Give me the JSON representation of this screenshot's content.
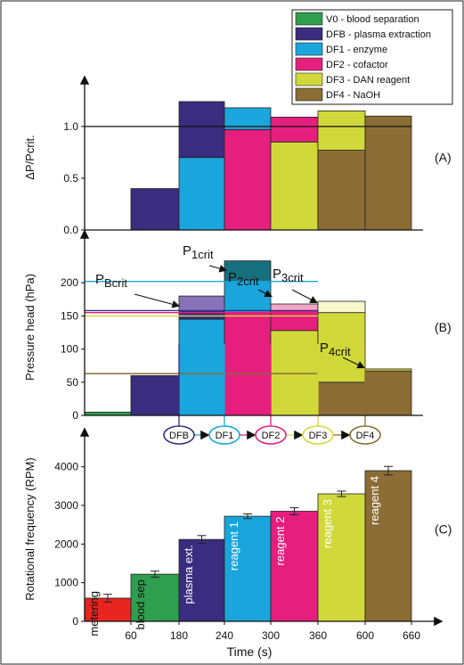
{
  "chart_data": {
    "type": "bar",
    "xlabel": "Time (s)",
    "x_ticks": [
      "60",
      "180",
      "240",
      "300",
      "360",
      "600",
      "660"
    ],
    "colors": {
      "V0": "#2e9e4f",
      "DFB": "#3a2c7e",
      "DF1": "#1aa6dc",
      "DF2": "#e61e7e",
      "DF3": "#d1d83a",
      "DF4": "#8b6d35",
      "metering": "#e8251e",
      "DF2_light": "#f3a6c9",
      "DF3_light": "#e9ec9c",
      "DF3_pale": "#f6f7cc",
      "DF1_dark": "#17707e",
      "DFB_light": "#8873b8",
      "DF1_light": "#7fd0f0"
    },
    "legend": [
      {
        "key": "V0",
        "label": "V0 - blood separation",
        "color": "#2e9e4f"
      },
      {
        "key": "DFB",
        "label": "DFB - plasma extraction",
        "color": "#3a2c7e"
      },
      {
        "key": "DF1",
        "label": "DF1 - enzyme",
        "color": "#1aa6dc"
      },
      {
        "key": "DF2",
        "label": "DF2 - cofactor",
        "color": "#e61e7e"
      },
      {
        "key": "DF3",
        "label": "DF3 - DAN reagent",
        "color": "#d1d83a"
      },
      {
        "key": "DF4",
        "label": "DF4 - NaOH",
        "color": "#8b6d35"
      }
    ],
    "panels": [
      {
        "id": "A",
        "panel_label": "(A)",
        "ylabel": "ΔP/Pcrit.",
        "ylim": [
          0,
          1.3
        ],
        "yticks": [
          "0.0",
          "0.5",
          "1.0"
        ],
        "reference_line": 1.0,
        "segments": [
          {
            "slot": 1,
            "bars": [
              {
                "color": "DFB",
                "y0": 0,
                "y1": 0.4
              }
            ]
          },
          {
            "slot": 2,
            "bars": [
              {
                "color": "DF1",
                "y0": 0,
                "y1": 0.7
              },
              {
                "color": "DFB",
                "y0": 0.7,
                "y1": 1.24
              }
            ]
          },
          {
            "slot": 3,
            "bars": [
              {
                "color": "DF2",
                "y0": 0,
                "y1": 0.97
              },
              {
                "color": "DF1",
                "y0": 0.97,
                "y1": 1.18
              }
            ]
          },
          {
            "slot": 4,
            "bars": [
              {
                "color": "DF3",
                "y0": 0,
                "y1": 0.85
              },
              {
                "color": "DF2",
                "y0": 0.85,
                "y1": 1.09
              }
            ]
          },
          {
            "slot": 5,
            "bars": [
              {
                "color": "DF4",
                "y0": 0,
                "y1": 0.77
              },
              {
                "color": "DF3",
                "y0": 0.77,
                "y1": 1.15
              }
            ]
          },
          {
            "slot": 6,
            "bars": [
              {
                "color": "DF4",
                "y0": 0,
                "y1": 1.1
              }
            ]
          }
        ]
      },
      {
        "id": "B",
        "panel_label": "(B)",
        "ylabel": "Pressure head (hPa)",
        "ylim": [
          0,
          250
        ],
        "yticks": [
          "0",
          "50",
          "100",
          "150",
          "200"
        ],
        "segments": [
          {
            "slot": 0,
            "bars": [
              {
                "color": "V0",
                "y0": 0,
                "y1": 5
              }
            ]
          },
          {
            "slot": 1,
            "bars": [
              {
                "color": "DFB",
                "y0": 0,
                "y1": 60
              }
            ]
          },
          {
            "slot": 2,
            "bars": [
              {
                "color": "DF1",
                "y0": 0,
                "y1": 145
              },
              {
                "color": "DFB",
                "y0": 145,
                "y1": 158
              },
              {
                "color": "DFB_light",
                "y0": 158,
                "y1": 180
              }
            ]
          },
          {
            "slot": 3,
            "bars": [
              {
                "color": "DF2",
                "y0": 0,
                "y1": 155
              },
              {
                "color": "DF1",
                "y0": 155,
                "y1": 202
              },
              {
                "color": "DF1_dark",
                "y0": 202,
                "y1": 233
              }
            ]
          },
          {
            "slot": 4,
            "bars": [
              {
                "color": "DF3",
                "y0": 0,
                "y1": 128
              },
              {
                "color": "DF2",
                "y0": 128,
                "y1": 158
              },
              {
                "color": "DF2_light",
                "y0": 158,
                "y1": 168
              }
            ]
          },
          {
            "slot": 5,
            "bars": [
              {
                "color": "DF4",
                "y0": 0,
                "y1": 50
              },
              {
                "color": "DF3",
                "y0": 50,
                "y1": 155
              },
              {
                "color": "DF3_pale",
                "y0": 155,
                "y1": 172
              }
            ]
          },
          {
            "slot": 6,
            "bars": [
              {
                "color": "DF4",
                "y0": 0,
                "y1": 67
              },
              {
                "color": "DF3",
                "y0": 67,
                "y1": 70
              }
            ]
          }
        ],
        "crit_lines": [
          {
            "color": "DFB",
            "value": 158
          },
          {
            "color": "DF2",
            "value": 155
          },
          {
            "color": "DF1",
            "value": 202
          },
          {
            "color": "DF3",
            "value": 150
          },
          {
            "color": "DF4",
            "value": 63
          }
        ],
        "annotations": [
          {
            "main": "P",
            "sub": "Bcrit"
          },
          {
            "main": "P",
            "sub": "1crit"
          },
          {
            "main": "P",
            "sub": "2crit"
          },
          {
            "main": "P",
            "sub": "3crit"
          },
          {
            "main": "P",
            "sub": "4crit"
          }
        ]
      },
      {
        "id": "C",
        "panel_label": "(C)",
        "ylabel": "Rotational frequency (RPM)",
        "ylim": [
          0,
          4500
        ],
        "yticks": [
          "0",
          "1000",
          "2000",
          "3000",
          "4000"
        ],
        "bars": [
          {
            "slot": 0,
            "label": "metering",
            "value": 600,
            "err": 100,
            "color": "metering"
          },
          {
            "slot": 1,
            "label": "blood sep",
            "value": 1220,
            "err": 80,
            "color": "V0"
          },
          {
            "slot": 2,
            "label": "plasma ext.",
            "value": 2120,
            "err": 100,
            "color": "DFB"
          },
          {
            "slot": 3,
            "label": "reagent 1",
            "value": 2720,
            "err": 60,
            "color": "DF1"
          },
          {
            "slot": 4,
            "label": "reagent 2",
            "value": 2850,
            "err": 90,
            "color": "DF2"
          },
          {
            "slot": 5,
            "label": "reagent 3",
            "value": 3300,
            "err": 70,
            "color": "DF3"
          },
          {
            "slot": 6,
            "label": "reagent 4",
            "value": 3900,
            "err": 110,
            "color": "DF4"
          }
        ],
        "flow_nodes": [
          {
            "label": "DFB",
            "color": "DFB"
          },
          {
            "label": "DF1",
            "color": "DF1"
          },
          {
            "label": "DF2",
            "color": "DF2"
          },
          {
            "label": "DF3",
            "color": "DF3"
          },
          {
            "label": "DF4",
            "color": "DF4"
          }
        ]
      }
    ]
  }
}
